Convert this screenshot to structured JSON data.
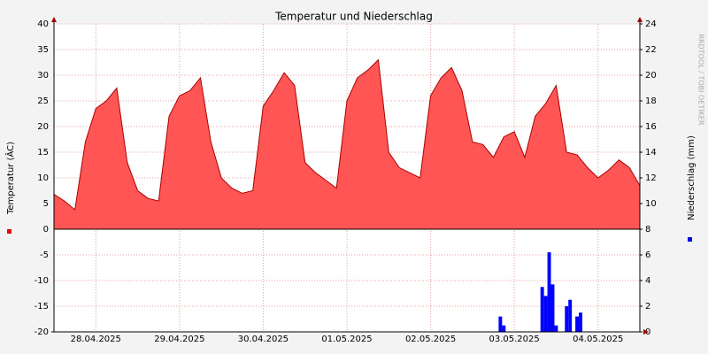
{
  "chart_data": {
    "type": "area",
    "title": "Temperatur und Niederschlag",
    "ylabel": "Temperatur (ÂC)",
    "y2label": "Niederschlag (mm)",
    "watermark": "RRDTOOL / TOBI OETIKER",
    "xlim": [
      0,
      168
    ],
    "xticks": [
      {
        "value": 12,
        "label": "28.04.2025"
      },
      {
        "value": 36,
        "label": "29.04.2025"
      },
      {
        "value": 60,
        "label": "30.04.2025"
      },
      {
        "value": 84,
        "label": "01.05.2025"
      },
      {
        "value": 108,
        "label": "02.05.2025"
      },
      {
        "value": 132,
        "label": "03.05.2025"
      },
      {
        "value": 156,
        "label": "04.05.2025"
      }
    ],
    "ylim": [
      -20,
      40
    ],
    "yticks": [
      -20,
      -15,
      -10,
      -5,
      0,
      5,
      10,
      15,
      20,
      25,
      30,
      35,
      40
    ],
    "y2lim": [
      0,
      24
    ],
    "y2ticks": [
      0,
      2,
      4,
      6,
      8,
      10,
      12,
      14,
      16,
      18,
      20,
      22,
      24
    ],
    "grid": true,
    "series": [
      {
        "type": "area",
        "color": "#ff5555",
        "x": [
          0,
          3,
          6,
          9,
          12,
          15,
          18,
          21,
          24,
          27,
          30,
          33,
          36,
          39,
          42,
          45,
          48,
          51,
          54,
          57,
          60,
          63,
          66,
          69,
          72,
          75,
          78,
          81,
          84,
          87,
          90,
          93,
          96,
          99,
          102,
          105,
          108,
          111,
          114,
          117,
          120,
          123,
          126,
          129,
          132,
          135,
          138,
          141,
          144,
          147,
          150,
          153,
          156,
          159,
          162,
          165,
          168
        ],
        "values": [
          6.8,
          5.5,
          3.8,
          17,
          23.5,
          25,
          27.5,
          13,
          7.5,
          6,
          5.5,
          22,
          26,
          27,
          29.5,
          17,
          10,
          8,
          7,
          7.5,
          24,
          27,
          30.5,
          28,
          13,
          11,
          9.5,
          8,
          25,
          29.5,
          31,
          33,
          15,
          12,
          11,
          10,
          26,
          29.5,
          31.5,
          27,
          17,
          16.5,
          14,
          18,
          19,
          14,
          22,
          24.5,
          28,
          15,
          14.5,
          12,
          10,
          11.5,
          13.5,
          12,
          8.5
        ]
      },
      {
        "type": "bar",
        "axis": "y2",
        "color": "#0000ff",
        "x": [
          128,
          129,
          140,
          141,
          142,
          143,
          144,
          147,
          148,
          150,
          151
        ],
        "values": [
          1.2,
          0.5,
          3.5,
          2.8,
          6.2,
          3.7,
          0.5,
          2,
          2.5,
          1.2,
          1.5
        ]
      }
    ]
  }
}
